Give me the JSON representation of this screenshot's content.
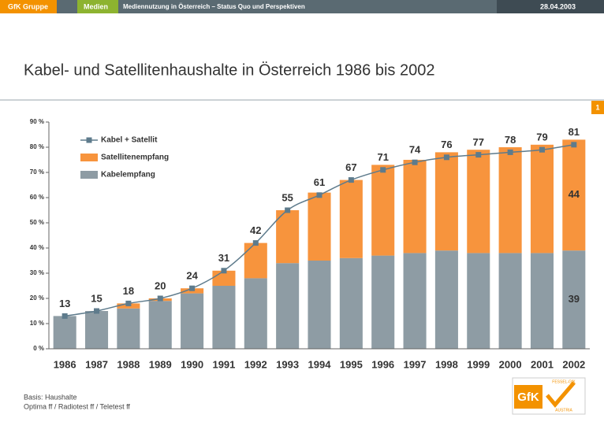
{
  "header": {
    "company": "GfK Gruppe",
    "section": "Medien",
    "topic": "Mediennutzung in Österreich – Status Quo und Perspektiven",
    "date": "28.04.2003"
  },
  "page_number": "1",
  "chart_data": {
    "type": "bar",
    "stacked": true,
    "title": "Kabel- und Satellitenhaushalte in Österreich 1986 bis 2002",
    "categories": [
      "1986",
      "1987",
      "1988",
      "1989",
      "1990",
      "1991",
      "1992",
      "1993",
      "1994",
      "1995",
      "1996",
      "1997",
      "1998",
      "1999",
      "2000",
      "2001",
      "2002"
    ],
    "series": [
      {
        "name": "Kabelempfang",
        "color": "#8e9ca4",
        "values": [
          13,
          15,
          16,
          19,
          22,
          25,
          28,
          34,
          35,
          36,
          37,
          38,
          39,
          38,
          38,
          38,
          39
        ]
      },
      {
        "name": "Satellitenempfang",
        "color": "#f7943d",
        "values": [
          0,
          0,
          2,
          1,
          2,
          6,
          14,
          21,
          27,
          31,
          36,
          37,
          39,
          41,
          42,
          43,
          44
        ]
      },
      {
        "name": "Kabel + Satellit",
        "type": "line",
        "color": "#5e7b8c",
        "values": [
          13,
          15,
          18,
          20,
          24,
          31,
          42,
          55,
          61,
          67,
          71,
          74,
          76,
          77,
          78,
          79,
          81
        ]
      }
    ],
    "ylim": [
      0,
      90
    ],
    "yticks": [
      {
        "value": 0,
        "label": "0 %"
      },
      {
        "value": 10,
        "label": "10 %"
      },
      {
        "value": 20,
        "label": "20 %"
      },
      {
        "value": 30,
        "label": "30 %"
      },
      {
        "value": 40,
        "label": "40 %"
      },
      {
        "value": 50,
        "label": "50 %"
      },
      {
        "value": 60,
        "label": "60 %"
      },
      {
        "value": 70,
        "label": "70 %"
      },
      {
        "value": 80,
        "label": "80 %"
      },
      {
        "value": 90,
        "label": "90 %"
      }
    ],
    "legend": "upper left"
  },
  "footer": {
    "basis": "Basis: Haushalte",
    "sources": "Optima ff / Radiotest ff / Teletest ff"
  },
  "logo": {
    "text": "GfK",
    "top": "FESSEL-GfK",
    "bottom": "AUSTRIA"
  }
}
